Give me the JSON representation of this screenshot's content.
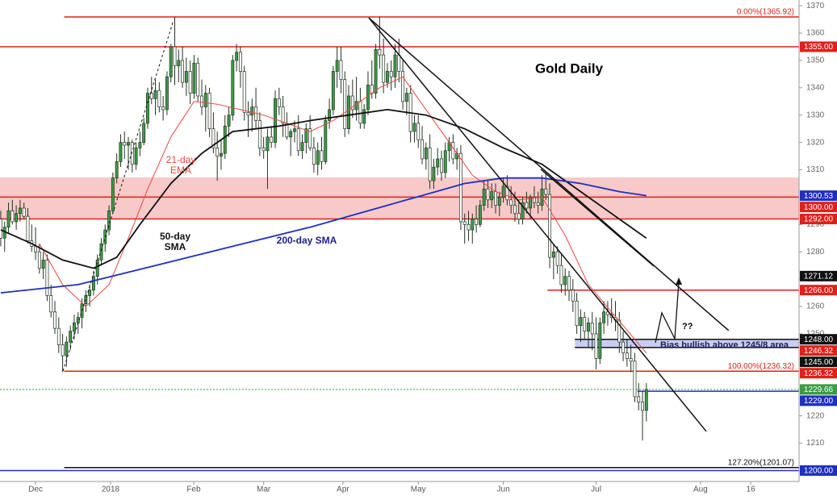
{
  "chart_data": {
    "type": "candlestick",
    "title": "Gold Daily",
    "xlim": [
      -0.2,
      206.5
    ],
    "ylim": [
      1196,
      1372.1
    ],
    "xticks": [
      {
        "value": 9,
        "label": "Dec"
      },
      {
        "value": 28.4,
        "label": "2018"
      },
      {
        "value": 49.9,
        "label": "Feb"
      },
      {
        "value": 68,
        "label": "Mar"
      },
      {
        "value": 88.5,
        "label": "Apr"
      },
      {
        "value": 108,
        "label": "May"
      },
      {
        "value": 130,
        "label": "Jun"
      },
      {
        "value": 154,
        "label": "Jul"
      },
      {
        "value": 181,
        "label": "Aug"
      },
      {
        "value": 194,
        "label": "16"
      }
    ],
    "yticks": [
      1210,
      1220,
      1250,
      1260,
      1270,
      1280,
      1290,
      1310,
      1320,
      1330,
      1340,
      1350,
      1360,
      1370
    ],
    "up_color": "#3d9b45",
    "down_color": "#ffffff",
    "ohlc": [
      [
        1292,
        1295,
        1282,
        1285
      ],
      [
        1285,
        1291,
        1280,
        1289
      ],
      [
        1289,
        1298,
        1287,
        1295
      ],
      [
        1295,
        1299,
        1290,
        1291
      ],
      [
        1291,
        1297,
        1288,
        1294
      ],
      [
        1294,
        1299,
        1291,
        1296
      ],
      [
        1296,
        1298,
        1292,
        1293
      ],
      [
        1293,
        1296,
        1283,
        1284
      ],
      [
        1284,
        1290,
        1280,
        1282
      ],
      [
        1282,
        1289,
        1277,
        1280
      ],
      [
        1280,
        1283,
        1272,
        1274
      ],
      [
        1274,
        1280,
        1270,
        1277
      ],
      [
        1277,
        1279,
        1262,
        1264
      ],
      [
        1264,
        1268,
        1256,
        1258
      ],
      [
        1258,
        1262,
        1250,
        1252
      ],
      [
        1252,
        1256,
        1243,
        1246
      ],
      [
        1246,
        1250,
        1236,
        1242
      ],
      [
        1242,
        1249,
        1238,
        1247
      ],
      [
        1247,
        1253,
        1244,
        1251
      ],
      [
        1251,
        1257,
        1248,
        1254
      ],
      [
        1254,
        1258,
        1250,
        1256
      ],
      [
        1256,
        1263,
        1252,
        1261
      ],
      [
        1261,
        1266,
        1258,
        1264
      ],
      [
        1264,
        1268,
        1260,
        1266
      ],
      [
        1266,
        1273,
        1264,
        1271
      ],
      [
        1271,
        1279,
        1268,
        1277
      ],
      [
        1277,
        1285,
        1275,
        1283
      ],
      [
        1283,
        1290,
        1280,
        1288
      ],
      [
        1288,
        1297,
        1286,
        1295
      ],
      [
        1295,
        1309,
        1294,
        1307
      ],
      [
        1307,
        1316,
        1305,
        1313
      ],
      [
        1313,
        1323,
        1311,
        1320
      ],
      [
        1320,
        1324,
        1314,
        1319
      ],
      [
        1319,
        1322,
        1310,
        1320
      ],
      [
        1320,
        1321,
        1309,
        1312
      ],
      [
        1312,
        1320,
        1310,
        1318
      ],
      [
        1318,
        1324,
        1315,
        1320
      ],
      [
        1320,
        1329,
        1319,
        1327
      ],
      [
        1327,
        1340,
        1325,
        1338
      ],
      [
        1338,
        1344,
        1334,
        1336
      ],
      [
        1336,
        1343,
        1330,
        1339
      ],
      [
        1339,
        1342,
        1331,
        1333
      ],
      [
        1333,
        1337,
        1328,
        1332
      ],
      [
        1332,
        1346,
        1330,
        1344
      ],
      [
        1344,
        1356,
        1342,
        1355
      ],
      [
        1355,
        1366,
        1341,
        1348
      ],
      [
        1348,
        1354,
        1342,
        1350
      ],
      [
        1350,
        1355,
        1340,
        1342
      ],
      [
        1342,
        1351,
        1337,
        1346
      ],
      [
        1346,
        1350,
        1334,
        1338
      ],
      [
        1338,
        1352,
        1336,
        1349
      ],
      [
        1349,
        1351,
        1335,
        1337
      ],
      [
        1337,
        1343,
        1330,
        1333
      ],
      [
        1333,
        1341,
        1324,
        1338
      ],
      [
        1338,
        1340,
        1322,
        1325
      ],
      [
        1325,
        1331,
        1316,
        1318
      ],
      [
        1318,
        1324,
        1306,
        1315
      ],
      [
        1315,
        1321,
        1310,
        1316
      ],
      [
        1316,
        1330,
        1314,
        1326
      ],
      [
        1326,
        1333,
        1322,
        1330
      ],
      [
        1330,
        1352,
        1328,
        1350
      ],
      [
        1350,
        1356,
        1346,
        1353
      ],
      [
        1353,
        1355,
        1340,
        1346
      ],
      [
        1346,
        1348,
        1328,
        1331
      ],
      [
        1331,
        1335,
        1322,
        1330
      ],
      [
        1330,
        1336,
        1324,
        1333
      ],
      [
        1333,
        1340,
        1325,
        1328
      ],
      [
        1328,
        1331,
        1315,
        1318
      ],
      [
        1318,
        1322,
        1314,
        1317
      ],
      [
        1317,
        1325,
        1303,
        1322
      ],
      [
        1322,
        1326,
        1318,
        1320
      ],
      [
        1320,
        1339,
        1318,
        1336
      ],
      [
        1336,
        1340,
        1330,
        1333
      ],
      [
        1333,
        1337,
        1322,
        1327
      ],
      [
        1327,
        1331,
        1321,
        1322
      ],
      [
        1322,
        1325,
        1315,
        1324
      ],
      [
        1324,
        1328,
        1320,
        1325
      ],
      [
        1325,
        1330,
        1315,
        1317
      ],
      [
        1317,
        1323,
        1314,
        1320
      ],
      [
        1320,
        1327,
        1316,
        1325
      ],
      [
        1325,
        1330,
        1317,
        1318
      ],
      [
        1318,
        1322,
        1309,
        1312
      ],
      [
        1312,
        1320,
        1308,
        1317
      ],
      [
        1317,
        1322,
        1310,
        1313
      ],
      [
        1313,
        1330,
        1312,
        1328
      ],
      [
        1328,
        1336,
        1325,
        1332
      ],
      [
        1332,
        1348,
        1330,
        1346
      ],
      [
        1346,
        1355,
        1340,
        1350
      ],
      [
        1350,
        1355,
        1338,
        1343
      ],
      [
        1343,
        1346,
        1322,
        1325
      ],
      [
        1325,
        1341,
        1323,
        1337
      ],
      [
        1337,
        1343,
        1329,
        1332
      ],
      [
        1332,
        1344,
        1328,
        1335
      ],
      [
        1335,
        1340,
        1325,
        1327
      ],
      [
        1327,
        1334,
        1325,
        1332
      ],
      [
        1332,
        1346,
        1330,
        1341
      ],
      [
        1341,
        1350,
        1336,
        1338
      ],
      [
        1338,
        1356,
        1336,
        1354
      ],
      [
        1354,
        1366,
        1347,
        1352
      ],
      [
        1352,
        1358,
        1338,
        1342
      ],
      [
        1342,
        1349,
        1340,
        1346
      ],
      [
        1346,
        1350,
        1339,
        1344
      ],
      [
        1344,
        1356,
        1340,
        1352
      ],
      [
        1352,
        1358,
        1342,
        1346
      ],
      [
        1346,
        1350,
        1332,
        1335
      ],
      [
        1335,
        1340,
        1330,
        1338
      ],
      [
        1338,
        1341,
        1320,
        1324
      ],
      [
        1324,
        1330,
        1320,
        1327
      ],
      [
        1327,
        1330,
        1318,
        1321
      ],
      [
        1321,
        1326,
        1312,
        1314
      ],
      [
        1314,
        1320,
        1310,
        1318
      ],
      [
        1318,
        1323,
        1303,
        1306
      ],
      [
        1306,
        1314,
        1303,
        1311
      ],
      [
        1311,
        1318,
        1308,
        1314
      ],
      [
        1314,
        1317,
        1306,
        1309
      ],
      [
        1309,
        1320,
        1307,
        1317
      ],
      [
        1317,
        1322,
        1313,
        1320
      ],
      [
        1320,
        1323,
        1312,
        1314
      ],
      [
        1314,
        1318,
        1310,
        1316
      ],
      [
        1316,
        1319,
        1288,
        1291
      ],
      [
        1291,
        1294,
        1283,
        1290
      ],
      [
        1290,
        1295,
        1284,
        1288
      ],
      [
        1288,
        1294,
        1283,
        1292
      ],
      [
        1292,
        1297,
        1287,
        1290
      ],
      [
        1290,
        1299,
        1289,
        1297
      ],
      [
        1297,
        1306,
        1295,
        1303
      ],
      [
        1303,
        1306,
        1296,
        1299
      ],
      [
        1299,
        1305,
        1296,
        1302
      ],
      [
        1302,
        1305,
        1294,
        1297
      ],
      [
        1297,
        1302,
        1293,
        1300
      ],
      [
        1300,
        1307,
        1298,
        1304
      ],
      [
        1304,
        1308,
        1297,
        1299
      ],
      [
        1299,
        1304,
        1294,
        1297
      ],
      [
        1297,
        1302,
        1291,
        1294
      ],
      [
        1294,
        1299,
        1290,
        1292
      ],
      [
        1292,
        1300,
        1290,
        1298
      ],
      [
        1298,
        1302,
        1294,
        1296
      ],
      [
        1296,
        1301,
        1292,
        1300
      ],
      [
        1300,
        1304,
        1296,
        1298
      ],
      [
        1298,
        1302,
        1294,
        1297
      ],
      [
        1297,
        1308,
        1295,
        1303
      ],
      [
        1303,
        1309,
        1299,
        1301
      ],
      [
        1301,
        1305,
        1274,
        1278
      ],
      [
        1278,
        1283,
        1270,
        1280
      ],
      [
        1280,
        1282,
        1272,
        1275
      ],
      [
        1275,
        1279,
        1265,
        1268
      ],
      [
        1268,
        1274,
        1264,
        1271
      ],
      [
        1271,
        1273,
        1262,
        1266
      ],
      [
        1266,
        1270,
        1258,
        1262
      ],
      [
        1262,
        1265,
        1250,
        1253
      ],
      [
        1253,
        1259,
        1247,
        1256
      ],
      [
        1256,
        1258,
        1248,
        1251
      ],
      [
        1251,
        1256,
        1245,
        1254
      ],
      [
        1254,
        1258,
        1244,
        1250
      ],
      [
        1250,
        1256,
        1237,
        1241
      ],
      [
        1241,
        1256,
        1239,
        1254
      ],
      [
        1254,
        1262,
        1250,
        1258
      ],
      [
        1258,
        1262,
        1253,
        1257
      ],
      [
        1257,
        1263,
        1254,
        1256
      ],
      [
        1256,
        1262,
        1251,
        1255
      ],
      [
        1255,
        1258,
        1243,
        1247
      ],
      [
        1247,
        1251,
        1240,
        1243
      ],
      [
        1243,
        1248,
        1238,
        1241
      ],
      [
        1241,
        1246,
        1236,
        1240
      ],
      [
        1240,
        1243,
        1225,
        1227
      ],
      [
        1227,
        1232,
        1222,
        1225
      ],
      [
        1225,
        1229,
        1211,
        1222
      ],
      [
        1222,
        1232,
        1218,
        1229.66
      ]
    ],
    "series": [
      {
        "name": "21-day EMA",
        "color": "#e8483f",
        "x": [
          10,
          16,
          22,
          28,
          33,
          38,
          44,
          50,
          56,
          62,
          68,
          74,
          80,
          86,
          92,
          98,
          104,
          110,
          116,
          122,
          128,
          134,
          140,
          146,
          152,
          158,
          164,
          167
        ],
        "values": [
          1283,
          1268,
          1260,
          1268,
          1285,
          1303,
          1322,
          1335,
          1334,
          1332,
          1330,
          1327,
          1324,
          1328,
          1334,
          1340,
          1344,
          1332,
          1320,
          1308,
          1302,
          1299,
          1300,
          1286,
          1268,
          1258,
          1248,
          1243
        ]
      },
      {
        "name": "50-day SMA",
        "color": "#111111",
        "x": [
          0,
          8,
          16,
          24,
          30,
          36,
          44,
          52,
          60,
          66,
          72,
          80,
          90,
          100,
          110,
          120,
          130,
          140,
          150,
          158,
          164,
          167
        ],
        "values": [
          1288,
          1283,
          1277,
          1274,
          1278,
          1290,
          1305,
          1316,
          1324,
          1325,
          1326,
          1328,
          1330,
          1332,
          1330,
          1325,
          1318,
          1312,
          1302,
          1294,
          1288,
          1285
        ]
      },
      {
        "name": "200-day SMA",
        "color": "#1f2fc0",
        "x": [
          0,
          20,
          40,
          60,
          80,
          100,
          120,
          130,
          140,
          150,
          160,
          167
        ],
        "values": [
          1265,
          1268,
          1275,
          1282,
          1289,
          1297,
          1305,
          1307,
          1307,
          1305,
          1302,
          1300.53
        ]
      }
    ],
    "zones": [
      {
        "from": 1291.9,
        "to": 1307.2,
        "color": "#f8c9c9"
      },
      {
        "from": 1245,
        "to": 1248,
        "start": 148.5,
        "color": "#c9cdf1"
      }
    ],
    "levels": [
      {
        "value": 1355,
        "label": "1355.00",
        "color": "#e0201b",
        "start": -0.2
      },
      {
        "value": 1300.53,
        "label": "1300.53",
        "color": "#1f2fc0"
      },
      {
        "value": 1300,
        "label": "1300.00",
        "color": "#e0201b",
        "start": -0.2
      },
      {
        "value": 1292,
        "label": "1292.00",
        "color": "#e0201b",
        "start": -0.2
      },
      {
        "value": 1271.12,
        "label": "1271.12",
        "color": "#111111"
      },
      {
        "value": 1266,
        "label": "1266.00",
        "color": "#e0201b",
        "start": 141.4
      },
      {
        "value": 1248,
        "label": "1248.00",
        "color": "#111111",
        "start": 148.5
      },
      {
        "value": 1246.32,
        "label": "1246.32",
        "color": "#e0201b"
      },
      {
        "value": 1245,
        "label": "1245.00",
        "color": "#111111",
        "start": 148.5
      },
      {
        "value": 1236.32,
        "label": "1236.32",
        "color": "#e0201b",
        "start": 16.4
      },
      {
        "value": 1229.66,
        "label": "1229.66",
        "color": "#3d9b45",
        "start": -0.2,
        "dashed": true
      },
      {
        "value": 1229,
        "label": "1229.00",
        "color": "#1f2fc0",
        "start": 164.7
      },
      {
        "value": 1200,
        "label": "1200.00",
        "color": "#1f2fc0",
        "start": -0.2
      }
    ],
    "fibs": [
      {
        "value": 1365.92,
        "label": "0.00%(1365.92)",
        "color": "#e0201b",
        "start": 16.4
      },
      {
        "value": 1236.32,
        "label": "100.00%(1236.32)",
        "color": "#e0201b"
      },
      {
        "value": 1201.07,
        "label": "127.20%(1201.07)",
        "color": "#111111",
        "start": 16.4
      }
    ],
    "trendlines": [
      {
        "x": [
          95.2,
          182.5
        ],
        "values": [
          1365.6,
          1214.3
        ]
      },
      {
        "x": [
          95.2,
          188.3
        ],
        "values": [
          1365.6,
          1251.2
        ]
      },
      {
        "x": [
          139.7,
          168.9
        ],
        "values": [
          1310.2,
          1274.8
        ]
      },
      {
        "x": [
          16.1,
          44.7
        ],
        "values": [
          1236.4,
          1364.7
        ],
        "dashed": true
      }
    ],
    "annotations": [
      "Bias bullish above 1245/8 area",
      "??"
    ]
  }
}
